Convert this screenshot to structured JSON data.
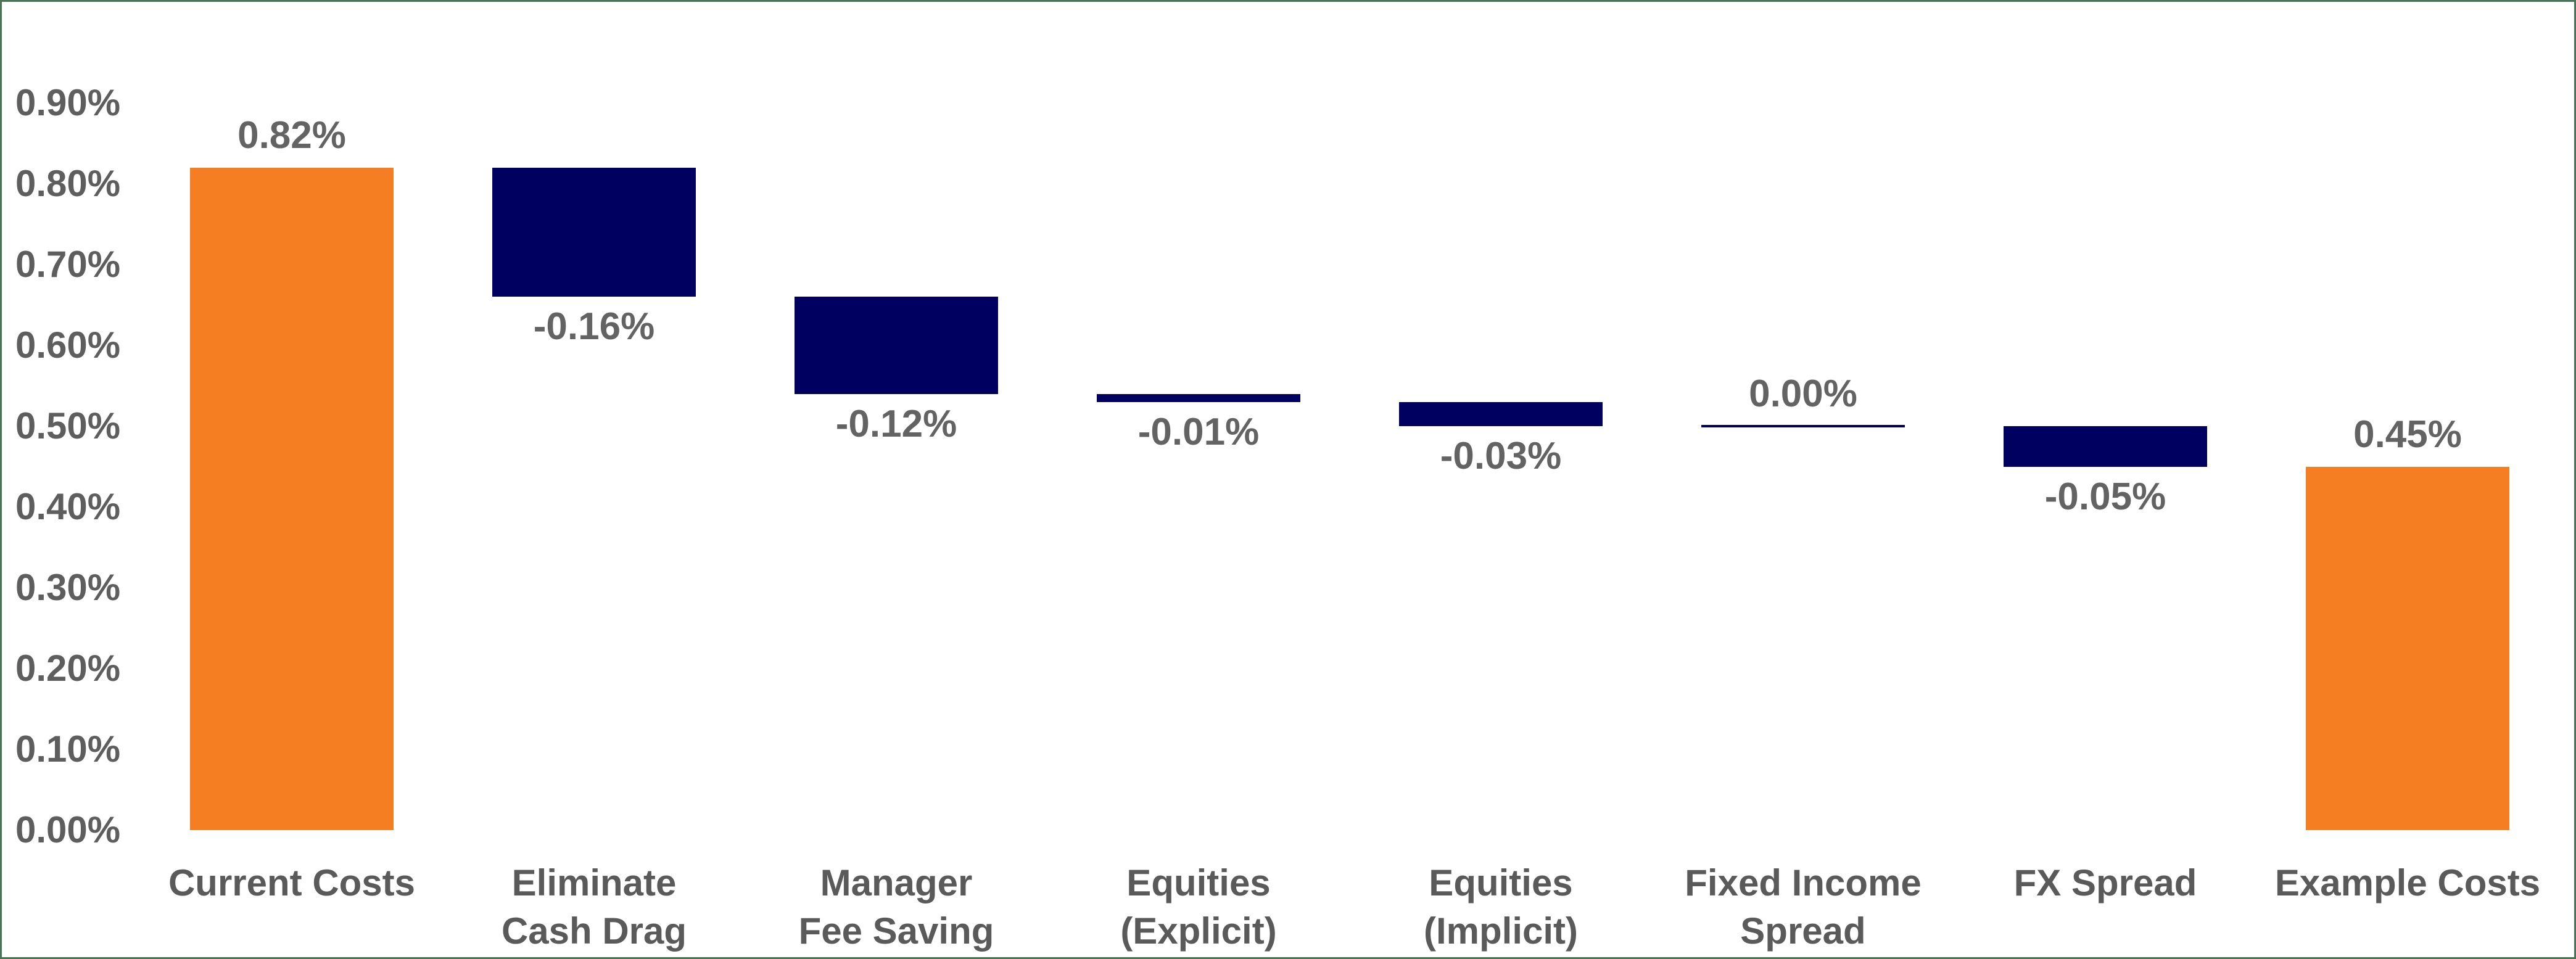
{
  "chart_data": {
    "type": "bar",
    "subtype": "waterfall",
    "title": "",
    "xlabel": "",
    "ylabel": "",
    "unit": "%",
    "ylim": [
      0.0,
      0.9
    ],
    "grid": false,
    "legend": "none",
    "y_ticks": [
      {
        "value": 0.9,
        "label": "0.90%"
      },
      {
        "value": 0.8,
        "label": "0.80%"
      },
      {
        "value": 0.7,
        "label": "0.70%"
      },
      {
        "value": 0.6,
        "label": "0.60%"
      },
      {
        "value": 0.5,
        "label": "0.50%"
      },
      {
        "value": 0.4,
        "label": "0.40%"
      },
      {
        "value": 0.3,
        "label": "0.30%"
      },
      {
        "value": 0.2,
        "label": "0.20%"
      },
      {
        "value": 0.1,
        "label": "0.10%"
      },
      {
        "value": 0.0,
        "label": "0.00%"
      }
    ],
    "categories": [
      "Current Costs",
      "Eliminate Cash Drag",
      "Manager Fee Saving",
      "Equities (Explicit)",
      "Equities (Implicit)",
      "Fixed Income Spread",
      "FX Spread",
      "Example Costs"
    ],
    "bars": [
      {
        "category_display": "Current Costs",
        "value": 0.82,
        "value_label": "0.82%",
        "start": 0.0,
        "end": 0.82,
        "kind": "total",
        "label_position": "above"
      },
      {
        "category_display": "Eliminate\nCash Drag",
        "value": -0.16,
        "value_label": "-0.16%",
        "start": 0.82,
        "end": 0.66,
        "kind": "decrease",
        "label_position": "below"
      },
      {
        "category_display": "Manager\nFee Saving",
        "value": -0.12,
        "value_label": "-0.12%",
        "start": 0.66,
        "end": 0.54,
        "kind": "decrease",
        "label_position": "below"
      },
      {
        "category_display": "Equities (Explicit)",
        "value": -0.01,
        "value_label": "-0.01%",
        "start": 0.54,
        "end": 0.53,
        "kind": "decrease",
        "label_position": "below"
      },
      {
        "category_display": "Equities (Implicit)",
        "value": -0.03,
        "value_label": "-0.03%",
        "start": 0.53,
        "end": 0.5,
        "kind": "decrease",
        "label_position": "below"
      },
      {
        "category_display": "Fixed Income\nSpread",
        "value": 0.0,
        "value_label": "0.00%",
        "start": 0.5,
        "end": 0.5,
        "kind": "zero",
        "label_position": "above"
      },
      {
        "category_display": "FX Spread",
        "value": -0.05,
        "value_label": "-0.05%",
        "start": 0.5,
        "end": 0.45,
        "kind": "decrease",
        "label_position": "below"
      },
      {
        "category_display": "Example Costs",
        "value": 0.45,
        "value_label": "0.45%",
        "start": 0.0,
        "end": 0.45,
        "kind": "total",
        "label_position": "above"
      }
    ]
  },
  "colors": {
    "total_bar": "#f47e21",
    "decrease_bar": "#000060",
    "zero_line": "#000060",
    "value_label_text": "#636363",
    "axis_text": "#5a5a5a",
    "background": "#ffffff",
    "frame_border": "#4b7355"
  }
}
